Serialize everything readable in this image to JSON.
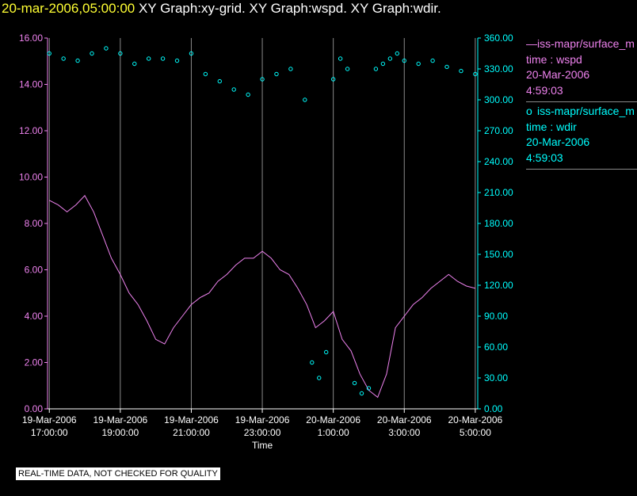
{
  "header": {
    "date": "20-mar-2006,05:00:00",
    "rest": "XY Graph:xy-grid.  XY Graph:wspd.  XY Graph:wdir."
  },
  "colors": {
    "wspd": "#ee82ee",
    "wdir": "#00ffff",
    "grid": "#8a8a8a",
    "left_axis": "#ee82ee",
    "right_axis": "#00ffff"
  },
  "legend": {
    "wspd": {
      "name": "iss-mapr/surface_m",
      "line1": "time : wspd",
      "line2": "20-Mar-2006",
      "line3": "4:59:03"
    },
    "wdir": {
      "name": "iss-mapr/surface_m",
      "line1": "time : wdir",
      "line2": "20-Mar-2006",
      "line3": "4:59:03"
    }
  },
  "notice": "REAL-TIME DATA, NOT CHECKED FOR QUALITY",
  "chart_data": {
    "type": "scatter",
    "xlabel": "Time",
    "x_ticks": [
      {
        "h": 17,
        "l1": "19-Mar-2006",
        "l2": "17:00:00"
      },
      {
        "h": 19,
        "l1": "19-Mar-2006",
        "l2": "19:00:00"
      },
      {
        "h": 21,
        "l1": "19-Mar-2006",
        "l2": "21:00:00"
      },
      {
        "h": 23,
        "l1": "19-Mar-2006",
        "l2": "23:00:00"
      },
      {
        "h": 25,
        "l1": "20-Mar-2006",
        "l2": "1:00:00"
      },
      {
        "h": 27,
        "l1": "20-Mar-2006",
        "l2": "3:00:00"
      },
      {
        "h": 29,
        "l1": "20-Mar-2006",
        "l2": "5:00:00"
      }
    ],
    "xlim": [
      16.95,
      29.07
    ],
    "y_left": {
      "ylim": [
        0,
        16
      ],
      "ticks": [
        "0.00",
        "2.00",
        "4.00",
        "6.00",
        "8.00",
        "10.00",
        "12.00",
        "14.00",
        "16.00"
      ]
    },
    "y_right": {
      "ylim": [
        0,
        360
      ],
      "ticks": [
        "0.00",
        "30.00",
        "60.00",
        "90.00",
        "120.00",
        "150.00",
        "180.00",
        "210.00",
        "240.00",
        "270.00",
        "300.00",
        "330.00",
        "360.00"
      ]
    },
    "series": [
      {
        "name": "wspd",
        "style": "line",
        "axis": "left",
        "hours": [
          17.0,
          17.25,
          17.5,
          17.75,
          18.0,
          18.25,
          18.5,
          18.75,
          19.0,
          19.25,
          19.5,
          19.75,
          20.0,
          20.25,
          20.5,
          20.75,
          21.0,
          21.25,
          21.5,
          21.75,
          22.0,
          22.25,
          22.5,
          22.75,
          23.0,
          23.25,
          23.5,
          23.75,
          24.0,
          24.25,
          24.5,
          24.75,
          25.0,
          25.25,
          25.5,
          25.75,
          26.0,
          26.25,
          26.5,
          26.75,
          27.0,
          27.25,
          27.5,
          27.75,
          28.0,
          28.25,
          28.5,
          28.75,
          29.0
        ],
        "values": [
          9.0,
          8.8,
          8.5,
          8.8,
          9.2,
          8.5,
          7.5,
          6.5,
          5.8,
          5.0,
          4.5,
          3.8,
          3.0,
          2.8,
          3.5,
          4.0,
          4.5,
          4.8,
          5.0,
          5.5,
          5.8,
          6.2,
          6.5,
          6.5,
          6.8,
          6.5,
          6.0,
          5.8,
          5.2,
          4.5,
          3.5,
          3.8,
          4.2,
          3.0,
          2.5,
          1.5,
          0.8,
          0.5,
          1.5,
          3.5,
          4.0,
          4.5,
          4.8,
          5.2,
          5.5,
          5.8,
          5.5,
          5.3,
          5.2
        ]
      },
      {
        "name": "wdir",
        "style": "points",
        "axis": "right",
        "hours": [
          17.0,
          17.4,
          17.8,
          18.2,
          18.6,
          19.0,
          19.4,
          19.8,
          20.2,
          20.6,
          21.0,
          21.4,
          21.8,
          22.2,
          22.6,
          23.0,
          23.4,
          23.8,
          24.2,
          24.4,
          24.6,
          24.8,
          25.0,
          25.2,
          25.4,
          25.6,
          25.8,
          26.0,
          26.2,
          26.4,
          26.6,
          26.8,
          27.0,
          27.4,
          27.8,
          28.2,
          28.6,
          29.0
        ],
        "values": [
          345,
          340,
          338,
          345,
          350,
          345,
          335,
          340,
          340,
          338,
          345,
          325,
          318,
          310,
          305,
          320,
          325,
          330,
          300,
          45,
          30,
          55,
          320,
          340,
          330,
          25,
          15,
          20,
          330,
          335,
          340,
          345,
          338,
          335,
          338,
          332,
          328,
          325
        ]
      }
    ]
  }
}
